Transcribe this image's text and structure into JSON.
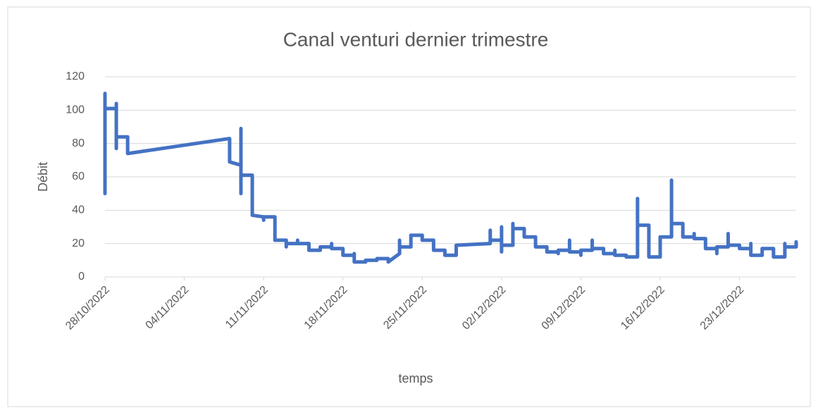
{
  "chart_data": {
    "type": "line",
    "title": "Canal venturi dernier trimestre",
    "x_label": "temps",
    "y_label": "Débit",
    "x": [
      "2022-10-28",
      "2022-10-28",
      "2022-10-28",
      "2022-10-29",
      "2022-10-29",
      "2022-10-29",
      "2022-10-29",
      "2022-10-30",
      "2022-10-30",
      "2022-11-08",
      "2022-11-08",
      "2022-11-09",
      "2022-11-09",
      "2022-11-09",
      "2022-11-09",
      "2022-11-10",
      "2022-11-10",
      "2022-11-11",
      "2022-11-11",
      "2022-11-11",
      "2022-11-12",
      "2022-11-12",
      "2022-11-13",
      "2022-11-13",
      "2022-11-13",
      "2022-11-14",
      "2022-11-14",
      "2022-11-14",
      "2022-11-15",
      "2022-11-15",
      "2022-11-16",
      "2022-11-16",
      "2022-11-17",
      "2022-11-17",
      "2022-11-17",
      "2022-11-18",
      "2022-11-18",
      "2022-11-19",
      "2022-11-19",
      "2022-11-19",
      "2022-11-20",
      "2022-11-20",
      "2022-11-21",
      "2022-11-21",
      "2022-11-22",
      "2022-11-22",
      "2022-11-23",
      "2022-11-23",
      "2022-11-23",
      "2022-11-24",
      "2022-11-24",
      "2022-11-25",
      "2022-11-25",
      "2022-11-26",
      "2022-11-26",
      "2022-11-27",
      "2022-11-27",
      "2022-11-28",
      "2022-11-28",
      "2022-12-01",
      "2022-12-01",
      "2022-12-01",
      "2022-12-02",
      "2022-12-02",
      "2022-12-02",
      "2022-12-02",
      "2022-12-03",
      "2022-12-03",
      "2022-12-03",
      "2022-12-04",
      "2022-12-04",
      "2022-12-05",
      "2022-12-05",
      "2022-12-06",
      "2022-12-06",
      "2022-12-07",
      "2022-12-07",
      "2022-12-07",
      "2022-12-08",
      "2022-12-08",
      "2022-12-08",
      "2022-12-09",
      "2022-12-09",
      "2022-12-09",
      "2022-12-10",
      "2022-12-10",
      "2022-12-10",
      "2022-12-11",
      "2022-12-11",
      "2022-12-12",
      "2022-12-12",
      "2022-12-12",
      "2022-12-13",
      "2022-12-13",
      "2022-12-14",
      "2022-12-14",
      "2022-12-14",
      "2022-12-15",
      "2022-12-15",
      "2022-12-16",
      "2022-12-16",
      "2022-12-17",
      "2022-12-17",
      "2022-12-17",
      "2022-12-18",
      "2022-12-18",
      "2022-12-19",
      "2022-12-19",
      "2022-12-19",
      "2022-12-20",
      "2022-12-20",
      "2022-12-21",
      "2022-12-21",
      "2022-12-21",
      "2022-12-22",
      "2022-12-22",
      "2022-12-22",
      "2022-12-23",
      "2022-12-23",
      "2022-12-23",
      "2022-12-24",
      "2022-12-24",
      "2022-12-24",
      "2022-12-25",
      "2022-12-25",
      "2022-12-26",
      "2022-12-26",
      "2022-12-27",
      "2022-12-27",
      "2022-12-27",
      "2022-12-28",
      "2022-12-28",
      "2022-12-28"
    ],
    "series": [
      {
        "name": "Débit",
        "color": "#4472c4",
        "values": [
          50,
          110,
          101,
          101,
          104,
          77,
          84,
          84,
          74,
          83,
          69,
          67,
          89,
          50,
          61,
          61,
          37,
          36,
          34,
          36,
          36,
          22,
          22,
          18,
          20,
          20,
          22,
          20,
          20,
          16,
          16,
          18,
          18,
          20,
          17,
          17,
          13,
          13,
          14,
          9,
          9,
          10,
          10,
          11,
          11,
          9,
          14,
          22,
          18,
          18,
          25,
          25,
          22,
          22,
          16,
          16,
          13,
          13,
          19,
          20,
          28,
          22,
          22,
          30,
          15,
          19,
          19,
          32,
          29,
          29,
          24,
          24,
          18,
          18,
          15,
          15,
          14,
          16,
          16,
          22,
          15,
          15,
          13,
          16,
          16,
          22,
          17,
          17,
          14,
          14,
          16,
          13,
          13,
          12,
          12,
          47,
          31,
          31,
          12,
          12,
          24,
          24,
          58,
          32,
          32,
          24,
          24,
          26,
          23,
          23,
          17,
          17,
          14,
          18,
          18,
          26,
          19,
          19,
          18,
          17,
          17,
          20,
          13,
          13,
          17,
          17,
          12,
          12,
          20,
          18,
          18,
          21,
          19
        ]
      }
    ],
    "xlim": [
      "2022-10-28",
      "2022-12-28"
    ],
    "xticks": [
      {
        "value": "2022-10-28",
        "label": "28/10/2022"
      },
      {
        "value": "2022-11-04",
        "label": "04/11/2022"
      },
      {
        "value": "2022-11-11",
        "label": "11/11/2022"
      },
      {
        "value": "2022-11-18",
        "label": "18/11/2022"
      },
      {
        "value": "2022-11-25",
        "label": "25/11/2022"
      },
      {
        "value": "2022-12-02",
        "label": "02/12/2022"
      },
      {
        "value": "2022-12-09",
        "label": "09/12/2022"
      },
      {
        "value": "2022-12-16",
        "label": "16/12/2022"
      },
      {
        "value": "2022-12-23",
        "label": "23/12/2022"
      }
    ],
    "ylim": [
      0,
      120
    ],
    "yticks": [
      0,
      20,
      40,
      60,
      80,
      100,
      120
    ],
    "grid": true
  }
}
